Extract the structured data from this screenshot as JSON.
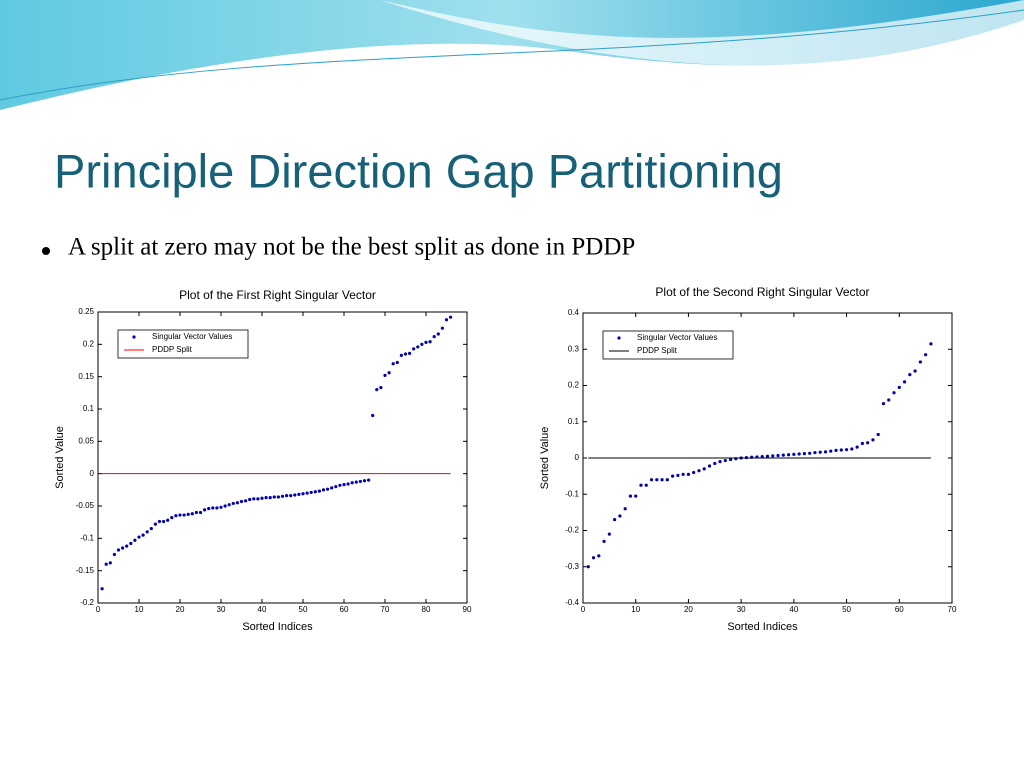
{
  "title": "Principle Direction Gap Partitioning",
  "bullet": "A split at zero may not be the best split as done in PDDP",
  "chart_data": [
    {
      "type": "scatter",
      "title": "Plot of the First Right Singular Vector",
      "xlabel": "Sorted Indices",
      "ylabel": "Sorted Value",
      "xlim": [
        0,
        90
      ],
      "xticks": [
        0,
        10,
        20,
        30,
        40,
        50,
        60,
        70,
        80,
        90
      ],
      "ylim": [
        -0.2,
        0.25
      ],
      "yticks": [
        -0.2,
        -0.15,
        -0.1,
        -0.05,
        0,
        0.05,
        0.1,
        0.15,
        0.2,
        0.25
      ],
      "legend": "upper left",
      "series": [
        {
          "name": "Singular Vector Values",
          "color": "#0000b0",
          "kind": "scatter",
          "x": [
            1,
            2,
            3,
            4,
            5,
            6,
            7,
            8,
            9,
            10,
            11,
            12,
            13,
            14,
            15,
            16,
            17,
            18,
            19,
            20,
            21,
            22,
            23,
            24,
            25,
            26,
            27,
            28,
            29,
            30,
            31,
            32,
            33,
            34,
            35,
            36,
            37,
            38,
            39,
            40,
            41,
            42,
            43,
            44,
            45,
            46,
            47,
            48,
            49,
            50,
            51,
            52,
            53,
            54,
            55,
            56,
            57,
            58,
            59,
            60,
            61,
            62,
            63,
            64,
            65,
            66,
            67,
            68,
            69,
            70,
            71,
            72,
            73,
            74,
            75,
            76,
            77,
            78,
            79,
            80,
            81,
            82,
            83,
            84,
            85,
            86
          ],
          "values": [
            -0.178,
            -0.14,
            -0.138,
            -0.125,
            -0.118,
            -0.115,
            -0.112,
            -0.108,
            -0.103,
            -0.098,
            -0.095,
            -0.09,
            -0.085,
            -0.078,
            -0.074,
            -0.074,
            -0.072,
            -0.068,
            -0.065,
            -0.064,
            -0.064,
            -0.063,
            -0.062,
            -0.06,
            -0.06,
            -0.056,
            -0.054,
            -0.053,
            -0.053,
            -0.052,
            -0.05,
            -0.048,
            -0.046,
            -0.045,
            -0.043,
            -0.042,
            -0.04,
            -0.039,
            -0.039,
            -0.038,
            -0.037,
            -0.037,
            -0.036,
            -0.036,
            -0.035,
            -0.034,
            -0.034,
            -0.033,
            -0.032,
            -0.031,
            -0.03,
            -0.029,
            -0.028,
            -0.027,
            -0.025,
            -0.024,
            -0.022,
            -0.02,
            -0.018,
            -0.017,
            -0.016,
            -0.014,
            -0.013,
            -0.012,
            -0.011,
            -0.01,
            0.09,
            0.13,
            0.133,
            0.152,
            0.156,
            0.17,
            0.172,
            0.183,
            0.185,
            0.186,
            0.193,
            0.196,
            0.2,
            0.203,
            0.204,
            0.212,
            0.216,
            0.225,
            0.238,
            0.242
          ]
        },
        {
          "name": "PDDP Split",
          "color": "#ff0000",
          "kind": "line",
          "x": [
            1,
            86
          ],
          "values": [
            0,
            0
          ]
        }
      ]
    },
    {
      "type": "scatter",
      "title": "Plot of the Second Right Singular Vector",
      "xlabel": "Sorted Indices",
      "ylabel": "Sorted Value",
      "xlim": [
        0,
        70
      ],
      "xticks": [
        0,
        10,
        20,
        30,
        40,
        50,
        60,
        70
      ],
      "ylim": [
        -0.4,
        0.4
      ],
      "yticks": [
        -0.4,
        -0.3,
        -0.2,
        -0.1,
        0,
        0.1,
        0.2,
        0.3,
        0.4
      ],
      "legend": "upper left",
      "series": [
        {
          "name": "Singular Vector Values",
          "color": "#0000b0",
          "kind": "scatter",
          "x": [
            1,
            2,
            3,
            4,
            5,
            6,
            7,
            8,
            9,
            10,
            11,
            12,
            13,
            14,
            15,
            16,
            17,
            18,
            19,
            20,
            21,
            22,
            23,
            24,
            25,
            26,
            27,
            28,
            29,
            30,
            31,
            32,
            33,
            34,
            35,
            36,
            37,
            38,
            39,
            40,
            41,
            42,
            43,
            44,
            45,
            46,
            47,
            48,
            49,
            50,
            51,
            52,
            53,
            54,
            55,
            56,
            57,
            58,
            59,
            60,
            61,
            62,
            63,
            64,
            65,
            66
          ],
          "values": [
            -0.3,
            -0.275,
            -0.27,
            -0.23,
            -0.21,
            -0.17,
            -0.16,
            -0.14,
            -0.105,
            -0.105,
            -0.075,
            -0.075,
            -0.06,
            -0.06,
            -0.06,
            -0.06,
            -0.05,
            -0.048,
            -0.045,
            -0.045,
            -0.04,
            -0.035,
            -0.03,
            -0.022,
            -0.015,
            -0.01,
            -0.007,
            -0.004,
            -0.002,
            0,
            0.001,
            0.002,
            0.003,
            0.004,
            0.005,
            0.006,
            0.007,
            0.008,
            0.009,
            0.01,
            0.011,
            0.012,
            0.013,
            0.015,
            0.016,
            0.017,
            0.019,
            0.021,
            0.022,
            0.023,
            0.025,
            0.03,
            0.04,
            0.042,
            0.05,
            0.065,
            0.15,
            0.16,
            0.18,
            0.195,
            0.21,
            0.23,
            0.24,
            0.265,
            0.285,
            0.315
          ]
        },
        {
          "name": "PDDP Split",
          "color": "#000000",
          "kind": "line",
          "x": [
            1,
            66
          ],
          "values": [
            0,
            0
          ]
        }
      ]
    }
  ]
}
